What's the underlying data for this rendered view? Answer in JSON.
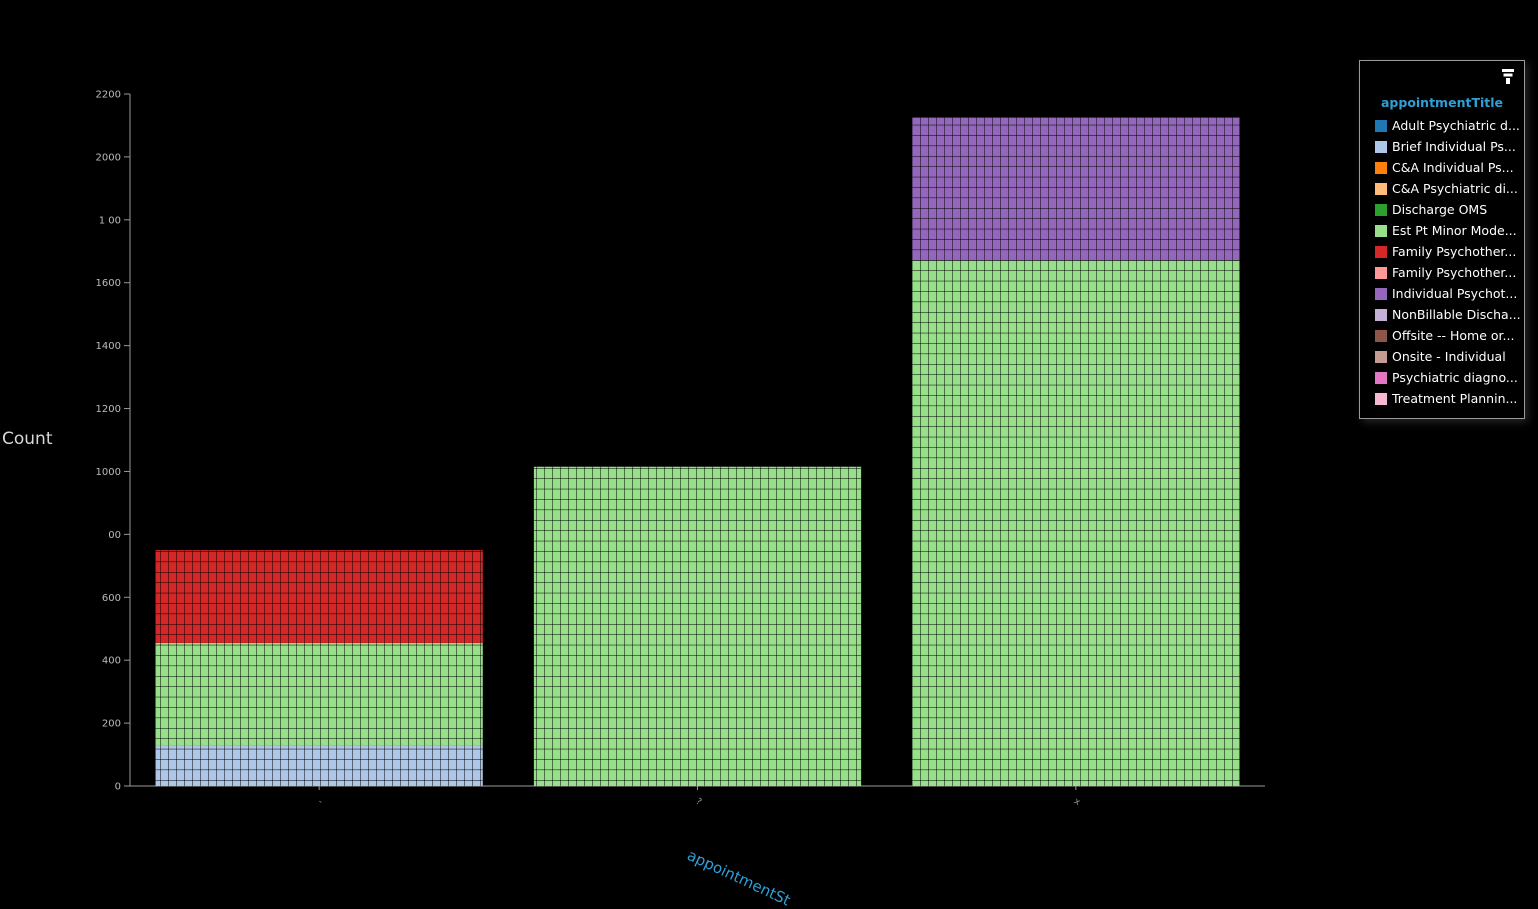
{
  "chart_data": {
    "type": "bar",
    "subtype": "stacked-waffle",
    "ylabel": "Count",
    "xlabel": "appointmentSt",
    "ylim": [
      0,
      2200
    ],
    "y_ticks": [
      "0",
      "200",
      "400",
      "600",
      "00",
      "1000",
      "1200",
      "1400",
      "1600",
      "1 00",
      "2000",
      "2200"
    ],
    "categories": [
      "-",
      "?",
      "x"
    ],
    "series": [
      {
        "name": "Brief Individual Ps...",
        "color": "#aec7e8",
        "values": [
          130,
          0,
          0
        ]
      },
      {
        "name": "Est Pt Minor Mode...",
        "color": "#98df8a",
        "values": [
          325,
          1015,
          1670
        ]
      },
      {
        "name": "Family Psychother...",
        "color": "#d62728",
        "values": [
          295,
          0,
          0
        ]
      },
      {
        "name": "Individual Psychot...",
        "color": "#9467bd",
        "values": [
          0,
          0,
          455
        ]
      }
    ],
    "grid": false,
    "legend_position": "right"
  },
  "legend": {
    "title": "appointmentTitle",
    "items": [
      {
        "label": "Adult Psychiatric d...",
        "color": "#1f77b4"
      },
      {
        "label": "Brief Individual Ps...",
        "color": "#aec7e8"
      },
      {
        "label": "C&A Individual Ps...",
        "color": "#ff7f0e"
      },
      {
        "label": "C&A Psychiatric di...",
        "color": "#ffbb78"
      },
      {
        "label": "Discharge OMS",
        "color": "#2ca02c"
      },
      {
        "label": "Est Pt Minor Mode...",
        "color": "#98df8a"
      },
      {
        "label": "Family Psychother...",
        "color": "#d62728"
      },
      {
        "label": "Family Psychother...",
        "color": "#ff9896"
      },
      {
        "label": "Individual Psychot...",
        "color": "#9467bd"
      },
      {
        "label": "NonBillable Discha...",
        "color": "#c5b0d5"
      },
      {
        "label": "Offsite -- Home or...",
        "color": "#8c564b"
      },
      {
        "label": "Onsite - Individual",
        "color": "#c49c94"
      },
      {
        "label": "Psychiatric diagno...",
        "color": "#e377c2"
      },
      {
        "label": "Treatment Plannin...",
        "color": "#f7b6d2"
      }
    ]
  }
}
